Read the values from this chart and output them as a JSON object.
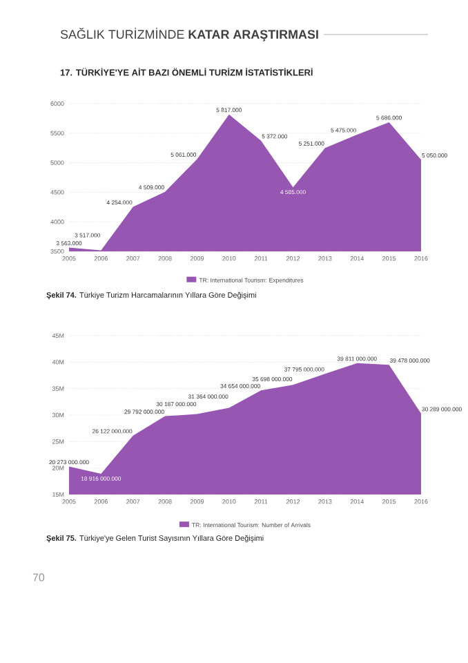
{
  "chart_data": [
    {
      "type": "area",
      "title": "17.  TÜRKİYE'YE AİT BAZI ÖNEMLİ TURİZM İSTATİSTİKLERİ",
      "annotations": [
        "SAĞLIK TURİZMİNDE **KATAR ARAŞTIRMASI**",
        "**Şekil 74.** Türkiye Turizm Harcamalarının Yıllara Göre Değişimi"
      ],
      "x": [
        2005,
        2006,
        2007,
        2008,
        2009,
        2010,
        2011,
        2012,
        2013,
        2014,
        2015,
        2016
      ],
      "series": [
        {
          "name": "TR: International Tourism: Expenditures",
          "color": "#9656b1",
          "values": [
            3563,
            3517,
            4254,
            4509,
            5061,
            5817,
            5372,
            4585,
            5251,
            5475,
            5686,
            5050
          ],
          "value_labels": [
            "3 563.000",
            "3 517.000",
            "4 254.000",
            "4 509.000",
            "5 061.000",
            "5 817.000",
            "5 372.000",
            "4 585.000",
            "5 251.000",
            "5 475.000",
            "5 686.000",
            "5 050.000"
          ]
        }
      ],
      "xlim": [
        2005,
        2016
      ],
      "xticks": [
        2005,
        2006,
        2007,
        2008,
        2009,
        2010,
        2011,
        2012,
        2013,
        2014,
        2015,
        2016
      ],
      "ylim": [
        3500,
        6000
      ],
      "yticks": [
        3500,
        4000,
        4500,
        5000,
        5500,
        6000
      ],
      "grid": "y",
      "legend": "bottom"
    },
    {
      "type": "area",
      "annotations": [
        "**Şekil 75.** Türkiye'ye Gelen Turist Sayısının Yıllara Göre Değişimi",
        "70"
      ],
      "x": [
        2005,
        2006,
        2007,
        2008,
        2009,
        2010,
        2011,
        2012,
        2013,
        2014,
        2015,
        2016
      ],
      "series": [
        {
          "name": "TR: International Tourism: Number of Arrivals",
          "color": "#9656b1",
          "values": [
            20273000,
            18916000,
            26122000,
            29792000,
            30187000,
            31364000,
            34654000,
            35698000,
            37795000,
            39811000,
            39478000,
            30289000
          ],
          "value_labels": [
            "20 273 000.000",
            "18 916 000.000",
            "26 122 000.000",
            "29 792 000.000",
            "30 187 000.000",
            "31 364 000.000",
            "34 654 000.000",
            "35 698 000.000",
            "37 795 000.000",
            "39 811 000.000",
            "39 478 000.000",
            "30 289 000.000"
          ]
        }
      ],
      "xlim": [
        2005,
        2016
      ],
      "xticks": [
        2005,
        2006,
        2007,
        2008,
        2009,
        2010,
        2011,
        2012,
        2013,
        2014,
        2015,
        2016
      ],
      "ylim": [
        15000000,
        45000000
      ],
      "yticks": [
        {
          "value": 15000000,
          "label": "15M"
        },
        {
          "value": 20000000,
          "label": "20M"
        },
        {
          "value": 25000000,
          "label": "25M"
        },
        {
          "value": 30000000,
          "label": "30M"
        },
        {
          "value": 35000000,
          "label": "35M"
        },
        {
          "value": 40000000,
          "label": "40M"
        },
        {
          "value": 45000000,
          "label": "45M"
        }
      ],
      "grid": "y",
      "legend": "bottom"
    }
  ]
}
